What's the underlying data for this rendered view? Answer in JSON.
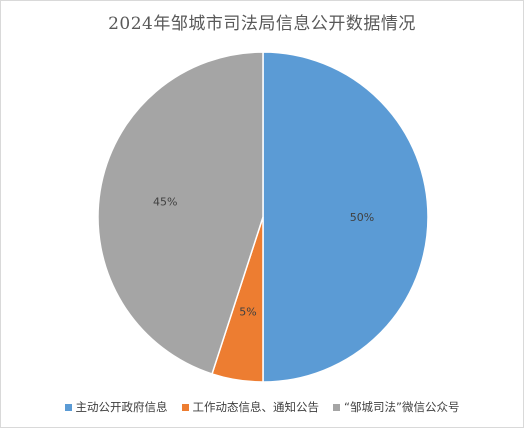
{
  "chart_data": {
    "type": "pie",
    "title": "2024年邹城市司法局信息公开数据情况",
    "slices": [
      {
        "label": "主动公开政府信息",
        "value": 50,
        "display": "50%",
        "color": "#5b9bd5"
      },
      {
        "label": "工作动态信息、通知公告",
        "value": 5,
        "display": "5%",
        "color": "#ed7d31"
      },
      {
        "label": "“邹城司法”微信公众号",
        "value": 45,
        "display": "45%",
        "color": "#a5a5a5"
      }
    ],
    "start_angle": "12 o'clock, clockwise",
    "legend_position": "bottom"
  }
}
